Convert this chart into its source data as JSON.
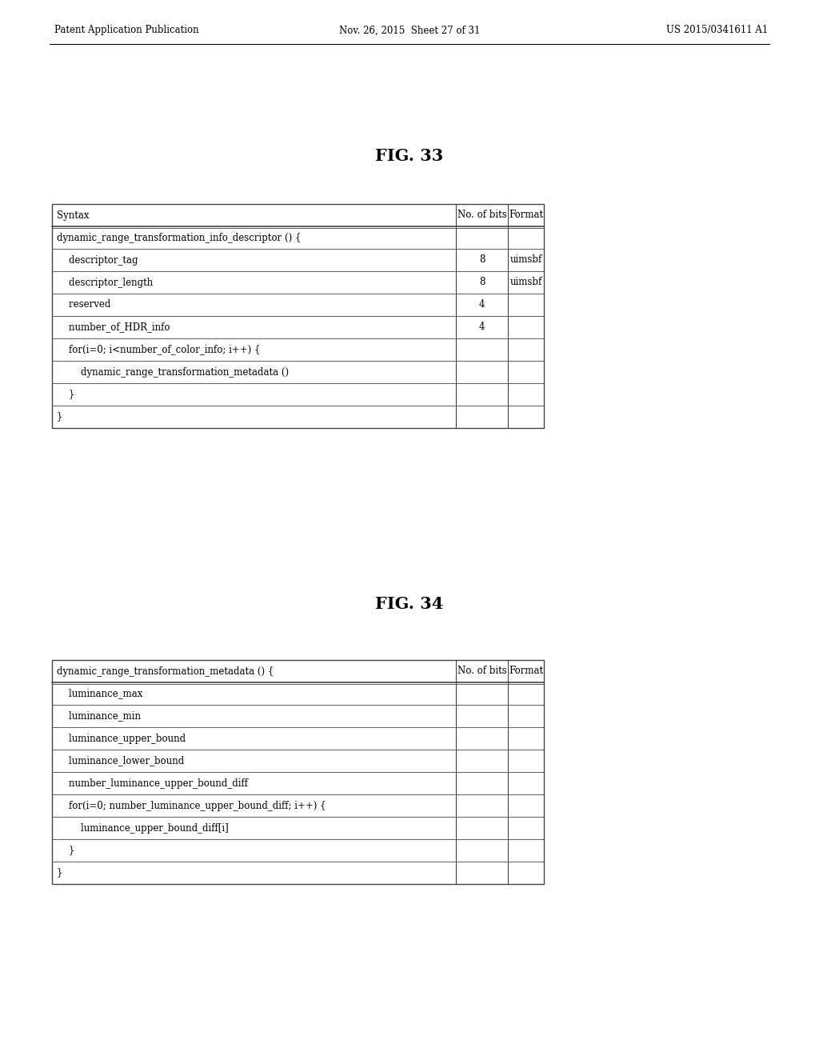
{
  "page_header_left": "Patent Application Publication",
  "page_header_center": "Nov. 26, 2015  Sheet 27 of 31",
  "page_header_right": "US 2015/0341611 A1",
  "fig33_title": "FIG. 33",
  "fig34_title": "FIG. 34",
  "table1": {
    "headers": [
      "Syntax",
      "No. of bits",
      "Format"
    ],
    "rows": [
      [
        "dynamic_range_transformation_info_descriptor () {",
        "",
        ""
      ],
      [
        "    descriptor_tag",
        "8",
        "uimsbf"
      ],
      [
        "    descriptor_length",
        "8",
        "uimsbf"
      ],
      [
        "    reserved",
        "4",
        ""
      ],
      [
        "    number_of_HDR_info",
        "4",
        ""
      ],
      [
        "    for(i=0; i<number_of_color_info; i++) {",
        "",
        ""
      ],
      [
        "        dynamic_range_transformation_metadata ()",
        "",
        ""
      ],
      [
        "    }",
        "",
        ""
      ],
      [
        "}",
        "",
        ""
      ]
    ]
  },
  "table2": {
    "headers": [
      "dynamic_range_transformation_metadata () {",
      "No. of bits",
      "Format"
    ],
    "rows": [
      [
        "    luminance_max",
        "",
        ""
      ],
      [
        "    luminance_min",
        "",
        ""
      ],
      [
        "    luminance_upper_bound",
        "",
        ""
      ],
      [
        "    luminance_lower_bound",
        "",
        ""
      ],
      [
        "    number_luminance_upper_bound_diff",
        "",
        ""
      ],
      [
        "    for(i=0; number_luminance_upper_bound_diff; i++) {",
        "",
        ""
      ],
      [
        "        luminance_upper_bound_diff[i]",
        "",
        ""
      ],
      [
        "    }",
        "",
        ""
      ],
      [
        "}",
        "",
        ""
      ]
    ]
  },
  "bg_color": "#ffffff",
  "text_color": "#000000",
  "table_line_color": "#444444",
  "header_font_size": 8.5,
  "cell_font_size": 8.5,
  "fig_title_font_size": 15
}
